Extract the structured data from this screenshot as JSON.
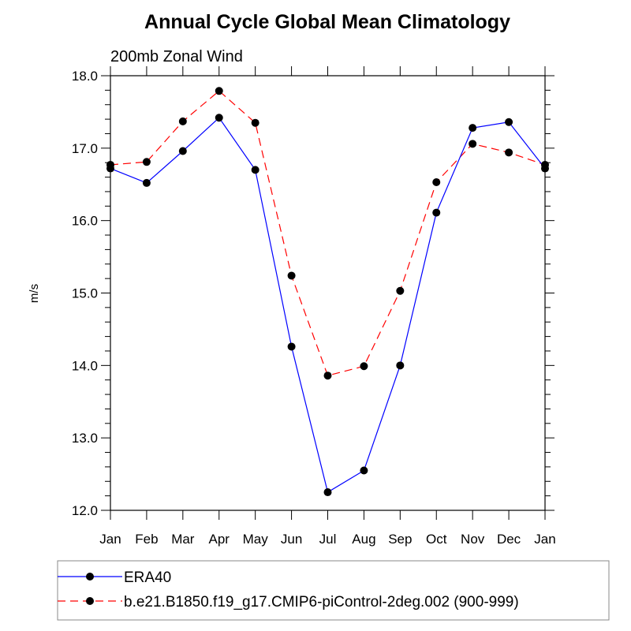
{
  "chart_data": {
    "type": "line",
    "title": "Annual Cycle Global Mean Climatology",
    "subtitle": "200mb Zonal Wind",
    "xlabel": "",
    "ylabel": "m/s",
    "categories": [
      "Jan",
      "Feb",
      "Mar",
      "Apr",
      "May",
      "Jun",
      "Jul",
      "Aug",
      "Sep",
      "Oct",
      "Nov",
      "Dec",
      "Jan"
    ],
    "ylim": [
      12.0,
      18.0
    ],
    "yticks": [
      "12.0",
      "13.0",
      "14.0",
      "15.0",
      "16.0",
      "17.0",
      "18.0"
    ],
    "ytick_values": [
      12,
      13,
      14,
      15,
      16,
      17,
      18
    ],
    "y_minor_step": 0.2,
    "grid": false,
    "legend_position": "bottom",
    "series": [
      {
        "name": "ERA40",
        "color": "#0000ff",
        "line_style": "solid",
        "marker": "filled-circle",
        "values": [
          16.72,
          16.52,
          16.96,
          17.42,
          16.7,
          14.26,
          12.25,
          12.55,
          14.0,
          16.11,
          17.28,
          17.36,
          16.72
        ]
      },
      {
        "name": "b.e21.B1850.f19_g17.CMIP6-piControl-2deg.002 (900-999)",
        "color": "#ff0000",
        "line_style": "dashed",
        "marker": "filled-circle",
        "values": [
          16.77,
          16.81,
          17.37,
          17.79,
          17.35,
          15.24,
          13.86,
          13.99,
          15.03,
          16.53,
          17.06,
          16.94,
          16.77
        ]
      }
    ]
  }
}
